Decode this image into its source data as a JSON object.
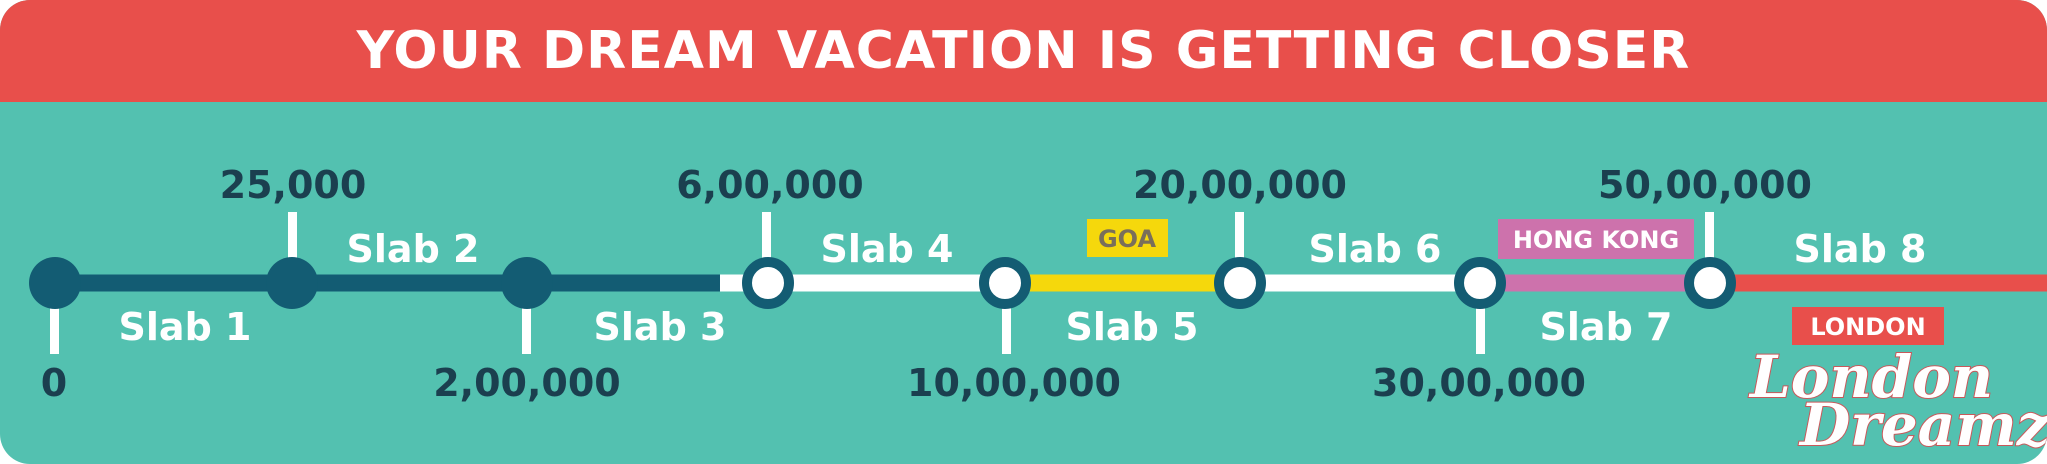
{
  "header": {
    "title": "YOUR DREAM VACATION IS GETTING CLOSER"
  },
  "colors": {
    "header_bg": "#e84f4b",
    "background": "#53c1b0",
    "dark_navy": "#135c73",
    "text_dark": "#1b3f4f",
    "white": "#ffffff",
    "goa_yellow": "#f5d80c",
    "hongkong_pink": "#cd72ac",
    "london_red": "#e84f4b"
  },
  "milestones": [
    "0",
    "25,000",
    "2,00,000",
    "6,00,000",
    "10,00,000",
    "20,00,000",
    "30,00,000",
    "50,00,000"
  ],
  "slabs": [
    "Slab 1",
    "Slab 2",
    "Slab 3",
    "Slab 4",
    "Slab 5",
    "Slab 6",
    "Slab 7",
    "Slab 8"
  ],
  "destinations": {
    "goa": "GOA",
    "hongkong": "HONG KONG",
    "london": "LONDON"
  },
  "logo": {
    "line1": "London",
    "line2": "Dreamz"
  }
}
